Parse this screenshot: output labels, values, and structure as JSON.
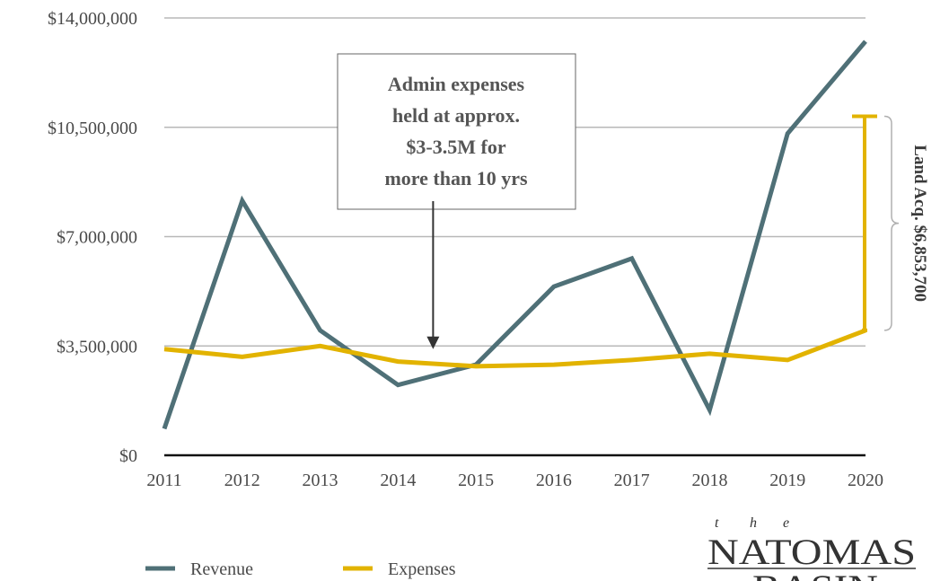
{
  "chart_data": {
    "type": "line",
    "x": [
      "2011",
      "2012",
      "2013",
      "2014",
      "2015",
      "2016",
      "2017",
      "2018",
      "2019",
      "2020"
    ],
    "y_ticks": [
      "$0",
      "$3,500,000",
      "$7,000,000",
      "$10,500,000",
      "$14,000,000"
    ],
    "y_tick_values": [
      0,
      3500000,
      7000000,
      10500000,
      14000000
    ],
    "ylim": [
      0,
      14000000
    ],
    "grid": true,
    "legend_position": "bottom-left",
    "series": [
      {
        "name": "Revenue",
        "color": "#4f7077",
        "values": [
          850000,
          8150000,
          4000000,
          2250000,
          2900000,
          5400000,
          6300000,
          1450000,
          10300000,
          13250000
        ]
      },
      {
        "name": "Expenses",
        "color": "#e2b300",
        "values": [
          3400000,
          3150000,
          3500000,
          3000000,
          2850000,
          2900000,
          3050000,
          3250000,
          3050000,
          4000000
        ]
      }
    ],
    "annotations": {
      "callout": {
        "lines": [
          "Admin expenses",
          "held at approx.",
          "$3-3.5M for",
          "more than 10 yrs"
        ],
        "arrow_target": {
          "x": 3.45,
          "y": 3400000
        }
      },
      "bracket": {
        "label": "Land Acq. $6,853,700",
        "x": "2020",
        "from": 4000000,
        "to": 10853700,
        "color": "#e2b300"
      }
    }
  },
  "logo": {
    "small": [
      "t",
      "h",
      "e"
    ],
    "line1": "NATOMAS",
    "line2": "BASIN"
  }
}
